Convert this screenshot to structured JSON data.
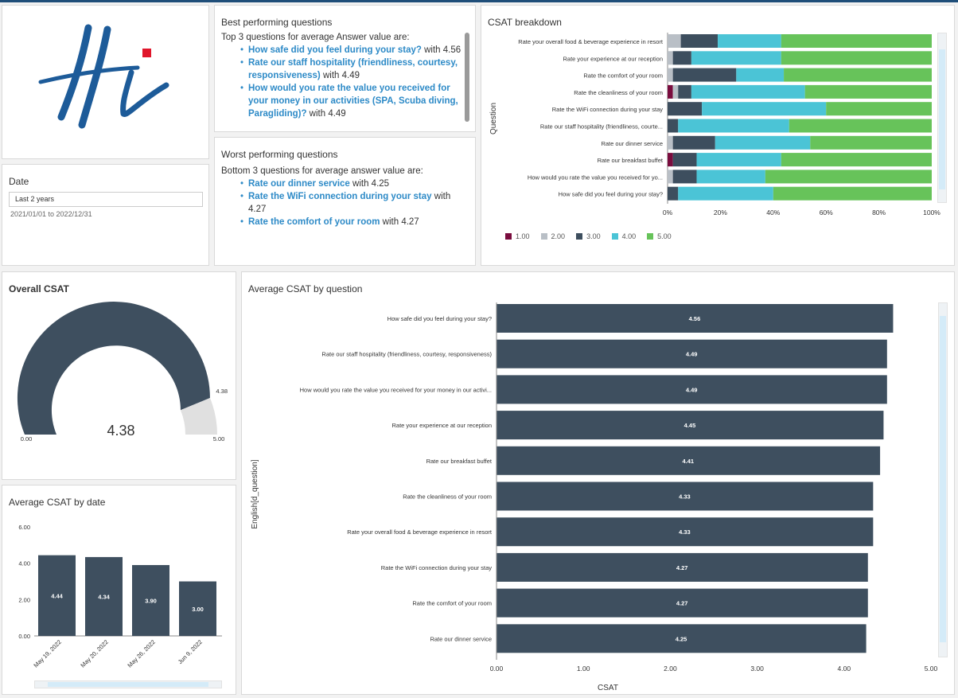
{
  "logo": {
    "text": "Hi"
  },
  "best": {
    "title": "Best performing questions",
    "intro": "Top 3 questions for average Answer value are:",
    "items": [
      {
        "q": "How safe did you feel during your stay?",
        "v": " with 4.56"
      },
      {
        "q": "Rate our staff hospitality (friendliness, courtesy, responsiveness)",
        "v": " with 4.49"
      },
      {
        "q": "How would you rate the value you received for your money in our activities (SPA, Scuba diving, Paragliding)?",
        "v": " with 4.49"
      }
    ]
  },
  "worst": {
    "title": "Worst performing questions",
    "intro": "Bottom 3 questions for average answer value are:",
    "items": [
      {
        "q": "Rate our dinner service",
        "v": " with 4.25"
      },
      {
        "q": "Rate the WiFi connection during your stay",
        "v": " with 4.27"
      },
      {
        "q": "Rate the comfort of your room",
        "v": " with 4.27"
      }
    ]
  },
  "date": {
    "title": "Date",
    "value": "Last 2 years",
    "range": "2021/01/01 to 2022/12/31"
  },
  "colors": {
    "c1": "#7a0c3e",
    "c2": "#b9bfc6",
    "c3": "#3d4e5e",
    "c4": "#4bc4d6",
    "c5": "#67c35a",
    "bar": "#3e4f5f"
  },
  "chart_data": [
    {
      "id": "breakdown",
      "type": "bar",
      "title": "CSAT breakdown",
      "ylabel": "Question",
      "stacked": "100%",
      "orientation": "horizontal",
      "categories": [
        "Rate your overall food & beverage experience in resort",
        "Rate your experience at our reception",
        "Rate the comfort of your room",
        "Rate the cleanliness of your room",
        "Rate the WiFi connection during your stay",
        "Rate our staff hospitality (friendliness, courte...",
        "Rate our dinner service",
        "Rate our breakfast buffet",
        "How would you rate the value you received for yo...",
        "How safe did you feel during your stay?"
      ],
      "series": [
        {
          "name": "1.00",
          "values": [
            0,
            0,
            0,
            2,
            0,
            0,
            0,
            2,
            0,
            0
          ]
        },
        {
          "name": "2.00",
          "values": [
            5,
            2,
            2,
            2,
            0,
            0,
            2,
            0,
            2,
            0
          ]
        },
        {
          "name": "3.00",
          "values": [
            14,
            7,
            24,
            5,
            13,
            4,
            16,
            9,
            9,
            4
          ]
        },
        {
          "name": "4.00",
          "values": [
            24,
            34,
            18,
            43,
            47,
            42,
            36,
            32,
            26,
            36
          ]
        },
        {
          "name": "5.00",
          "values": [
            57,
            57,
            56,
            48,
            40,
            54,
            46,
            57,
            63,
            60
          ]
        }
      ],
      "xticks": [
        "0%",
        "20%",
        "40%",
        "60%",
        "80%",
        "100%"
      ],
      "legend": "bottom-left"
    },
    {
      "id": "gauge",
      "type": "gauge",
      "title": "Overall CSAT",
      "value": 4.38,
      "value_label": "4.38",
      "min": 0,
      "max": 5,
      "min_label": "0.00",
      "max_label": "5.00",
      "mark_label": "4.38"
    },
    {
      "id": "by_date",
      "type": "bar",
      "title": "Average CSAT by date",
      "categories": [
        "May 19, 2022",
        "May 20, 2022",
        "May 26, 2022",
        "Jun 9, 2022"
      ],
      "values": [
        4.44,
        4.34,
        3.9,
        3.0
      ],
      "labels": [
        "4.44",
        "4.34",
        "3.90",
        "3.00"
      ],
      "ylim": [
        0,
        6
      ],
      "yticks": [
        "0.00",
        "2.00",
        "4.00",
        "6.00"
      ],
      "ytick_values": [
        0,
        2,
        4,
        6
      ]
    },
    {
      "id": "by_question",
      "type": "bar",
      "orientation": "horizontal",
      "title": "Average CSAT by question",
      "xlabel": "CSAT",
      "ylabel": "English[d_question]",
      "categories": [
        "How safe did you feel during your stay?",
        "Rate our staff hospitality (friendliness, courtesy, responsiveness)",
        "How would you rate the value you received for your money in our activi...",
        "Rate your experience at our reception",
        "Rate our breakfast buffet",
        "Rate the cleanliness of your room",
        "Rate your overall food & beverage experience in resort",
        "Rate the WiFi connection during your stay",
        "Rate the comfort of your room",
        "Rate our dinner service"
      ],
      "values": [
        4.56,
        4.49,
        4.49,
        4.45,
        4.41,
        4.33,
        4.33,
        4.27,
        4.27,
        4.25
      ],
      "labels": [
        "4.56",
        "4.49",
        "4.49",
        "4.45",
        "4.41",
        "4.33",
        "4.33",
        "4.27",
        "4.27",
        "4.25"
      ],
      "xlim": [
        0,
        5
      ],
      "xticks": [
        "0.00",
        "1.00",
        "2.00",
        "3.00",
        "4.00",
        "5.00"
      ],
      "xtick_values": [
        0,
        1,
        2,
        3,
        4,
        5
      ]
    }
  ]
}
